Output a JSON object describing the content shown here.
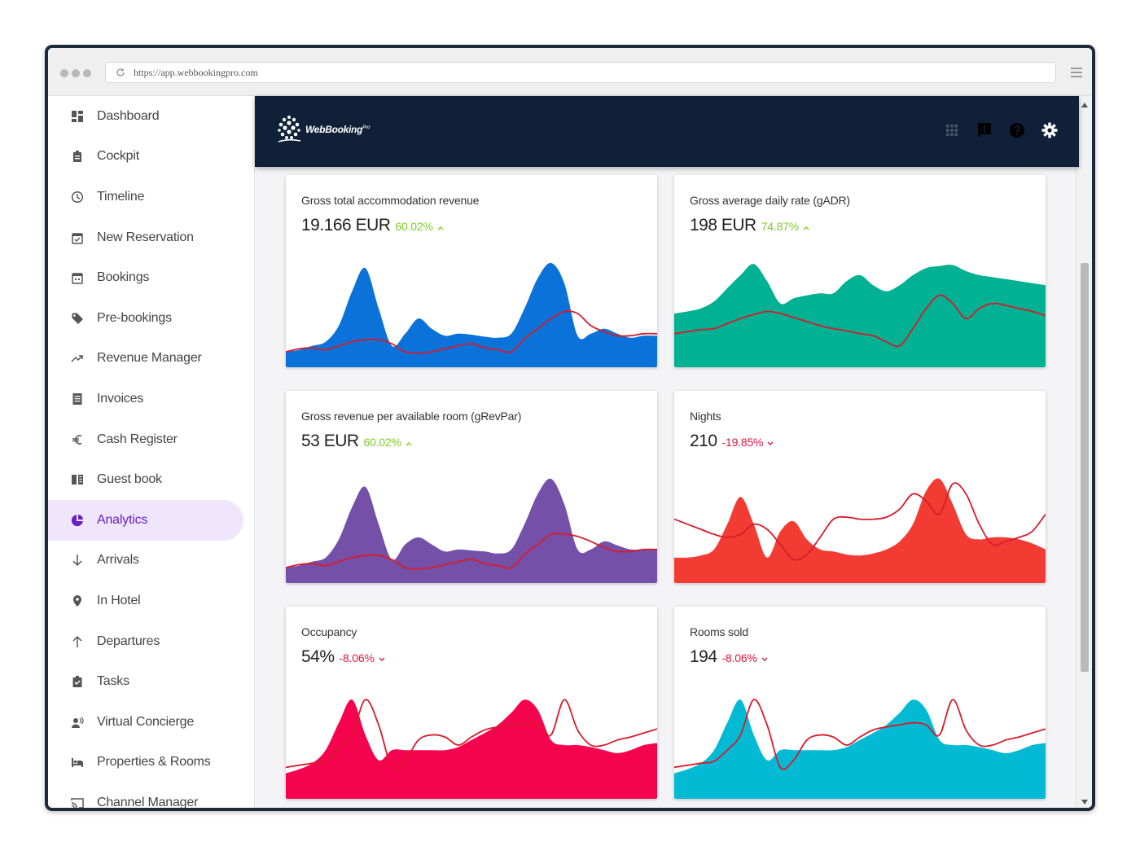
{
  "browser": {
    "url": "https://app.webbookingpro.com"
  },
  "app": {
    "logo_text": "WebBooking",
    "logo_sup": "Pro"
  },
  "sidebar": {
    "items": [
      {
        "label": "Dashboard",
        "icon": "dashboard-icon"
      },
      {
        "label": "Cockpit",
        "icon": "clipboard-icon"
      },
      {
        "label": "Timeline",
        "icon": "clock-icon"
      },
      {
        "label": "New Reservation",
        "icon": "calendar-check-icon"
      },
      {
        "label": "Bookings",
        "icon": "calendar-icon"
      },
      {
        "label": "Pre-bookings",
        "icon": "tag-icon"
      },
      {
        "label": "Revenue Manager",
        "icon": "trending-up-icon"
      },
      {
        "label": "Invoices",
        "icon": "document-icon"
      },
      {
        "label": "Cash Register",
        "icon": "euro-icon"
      },
      {
        "label": "Guest book",
        "icon": "book-icon"
      },
      {
        "label": "Analytics",
        "icon": "pie-chart-icon",
        "active": true
      },
      {
        "label": "Arrivals",
        "icon": "arrow-down-icon"
      },
      {
        "label": "In Hotel",
        "icon": "location-pin-icon"
      },
      {
        "label": "Departures",
        "icon": "arrow-up-icon"
      },
      {
        "label": "Tasks",
        "icon": "task-clipboard-icon"
      },
      {
        "label": "Virtual Concierge",
        "icon": "voice-person-icon"
      },
      {
        "label": "Properties & Rooms",
        "icon": "bed-icon"
      },
      {
        "label": "Channel Manager",
        "icon": "cast-icon"
      }
    ]
  },
  "cards": [
    {
      "title": "Gross total accommodation revenue",
      "value": "19.166 EUR",
      "change": "60.02%",
      "direction": "up",
      "color": "#0a72d8"
    },
    {
      "title": "Gross average daily rate (gADR)",
      "value": "198 EUR",
      "change": "74.87%",
      "direction": "up",
      "color": "#00b193"
    },
    {
      "title": "Gross revenue per available room (gRevPar)",
      "value": "53 EUR",
      "change": "60.02%",
      "direction": "up",
      "color": "#7450a8"
    },
    {
      "title": "Nights",
      "value": "210",
      "change": "-19.85%",
      "direction": "down",
      "color": "#f23c33"
    },
    {
      "title": "Occupancy",
      "value": "54%",
      "change": "-8.06%",
      "direction": "down",
      "color": "#f6034f"
    },
    {
      "title": "Rooms sold",
      "value": "194",
      "change": "-8.06%",
      "direction": "down",
      "color": "#02bad3"
    }
  ],
  "chart_data": [
    {
      "type": "area",
      "series": [
        {
          "values": [
            0.12,
            0.14,
            0.18,
            0.22,
            0.38,
            0.72,
            0.95,
            0.55,
            0.18,
            0.3,
            0.45,
            0.35,
            0.28,
            0.3,
            0.29,
            0.27,
            0.26,
            0.3,
            0.55,
            0.85,
            1.0,
            0.8,
            0.28,
            0.3,
            0.35,
            0.3,
            0.26,
            0.28,
            0.28
          ]
        },
        {
          "values": [
            0.12,
            0.15,
            0.16,
            0.14,
            0.18,
            0.22,
            0.24,
            0.24,
            0.2,
            0.12,
            0.11,
            0.12,
            0.15,
            0.18,
            0.2,
            0.16,
            0.14,
            0.12,
            0.25,
            0.35,
            0.45,
            0.52,
            0.5,
            0.38,
            0.32,
            0.28,
            0.28,
            0.3,
            0.3
          ]
        }
      ]
    },
    {
      "type": "area",
      "series": [
        {
          "values": [
            0.5,
            0.52,
            0.55,
            0.62,
            0.75,
            0.88,
            0.99,
            0.82,
            0.6,
            0.65,
            0.68,
            0.7,
            0.7,
            0.82,
            0.88,
            0.78,
            0.72,
            0.78,
            0.88,
            0.95,
            0.97,
            0.98,
            0.92,
            0.88,
            0.86,
            0.84,
            0.82,
            0.8,
            0.78
          ]
        },
        {
          "values": [
            0.3,
            0.32,
            0.34,
            0.35,
            0.4,
            0.45,
            0.49,
            0.52,
            0.5,
            0.46,
            0.42,
            0.38,
            0.35,
            0.33,
            0.3,
            0.28,
            0.22,
            0.18,
            0.35,
            0.55,
            0.68,
            0.6,
            0.45,
            0.55,
            0.6,
            0.58,
            0.55,
            0.52,
            0.48
          ]
        }
      ]
    },
    {
      "type": "area",
      "series": [
        {
          "values": [
            0.12,
            0.14,
            0.18,
            0.22,
            0.4,
            0.72,
            0.92,
            0.55,
            0.2,
            0.35,
            0.42,
            0.35,
            0.28,
            0.3,
            0.29,
            0.28,
            0.26,
            0.3,
            0.55,
            0.85,
            1.0,
            0.75,
            0.3,
            0.3,
            0.38,
            0.34,
            0.3,
            0.3,
            0.3
          ]
        },
        {
          "values": [
            0.12,
            0.15,
            0.16,
            0.14,
            0.18,
            0.22,
            0.24,
            0.24,
            0.2,
            0.12,
            0.11,
            0.12,
            0.15,
            0.18,
            0.2,
            0.16,
            0.14,
            0.12,
            0.25,
            0.35,
            0.45,
            0.45,
            0.43,
            0.38,
            0.32,
            0.28,
            0.28,
            0.3,
            0.3
          ]
        }
      ]
    },
    {
      "type": "area",
      "series": [
        {
          "values": [
            0.22,
            0.22,
            0.24,
            0.3,
            0.55,
            0.82,
            0.55,
            0.22,
            0.48,
            0.58,
            0.4,
            0.3,
            0.28,
            0.25,
            0.24,
            0.26,
            0.3,
            0.38,
            0.55,
            0.88,
            1.0,
            0.75,
            0.45,
            0.4,
            0.42,
            0.42,
            0.4,
            0.36,
            0.3
          ]
        },
        {
          "values": [
            0.6,
            0.55,
            0.5,
            0.45,
            0.42,
            0.45,
            0.55,
            0.5,
            0.35,
            0.2,
            0.25,
            0.42,
            0.6,
            0.62,
            0.6,
            0.6,
            0.62,
            0.7,
            0.85,
            0.78,
            0.65,
            0.95,
            0.85,
            0.55,
            0.35,
            0.38,
            0.42,
            0.48,
            0.65
          ]
        }
      ]
    },
    {
      "type": "area",
      "series": [
        {
          "values": [
            0.22,
            0.26,
            0.32,
            0.45,
            0.72,
            0.95,
            0.6,
            0.35,
            0.45,
            0.45,
            0.45,
            0.45,
            0.45,
            0.48,
            0.55,
            0.62,
            0.7,
            0.82,
            0.95,
            0.85,
            0.55,
            0.5,
            0.5,
            0.48,
            0.45,
            0.42,
            0.45,
            0.5,
            0.52
          ]
        },
        {
          "values": [
            0.28,
            0.3,
            0.32,
            0.34,
            0.45,
            0.6,
            0.95,
            0.7,
            0.28,
            0.35,
            0.55,
            0.6,
            0.58,
            0.5,
            0.58,
            0.65,
            0.68,
            0.7,
            0.72,
            0.7,
            0.6,
            0.95,
            0.65,
            0.5,
            0.5,
            0.55,
            0.58,
            0.62,
            0.66
          ]
        }
      ]
    },
    {
      "type": "area",
      "series": [
        {
          "values": [
            0.22,
            0.26,
            0.32,
            0.45,
            0.72,
            0.95,
            0.6,
            0.35,
            0.45,
            0.45,
            0.45,
            0.45,
            0.45,
            0.48,
            0.55,
            0.62,
            0.7,
            0.82,
            0.95,
            0.85,
            0.55,
            0.5,
            0.5,
            0.48,
            0.45,
            0.42,
            0.45,
            0.5,
            0.52
          ]
        },
        {
          "values": [
            0.28,
            0.3,
            0.32,
            0.34,
            0.45,
            0.6,
            0.95,
            0.7,
            0.28,
            0.35,
            0.55,
            0.6,
            0.58,
            0.5,
            0.58,
            0.65,
            0.68,
            0.7,
            0.72,
            0.7,
            0.6,
            0.95,
            0.65,
            0.5,
            0.5,
            0.55,
            0.58,
            0.62,
            0.66
          ]
        }
      ]
    }
  ]
}
